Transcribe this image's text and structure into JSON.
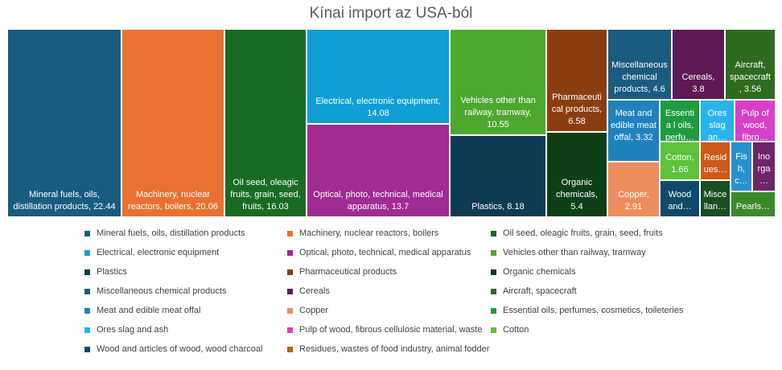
{
  "chart_data": {
    "type": "treemap",
    "title": "Kínai import az USA-ból",
    "items": [
      {
        "label": "Mineral fuels, oils, distillation products",
        "display": "Mineral fuels, oils, distillation products, 22.44",
        "value": 22.44,
        "color": "#185c7f"
      },
      {
        "label": "Machinery, nuclear reactors, boilers",
        "display": "Machinery, nuclear reactors, boilers, 20.06",
        "value": 20.06,
        "color": "#e97132"
      },
      {
        "label": "Oil seed, oleagic fruits, grain, seed, fruits",
        "display": "Oil seed, oleagic fruits, grain, seed, fruits, 16.03",
        "value": 16.03,
        "color": "#196b24"
      },
      {
        "label": "Electrical, electronic equipment",
        "display": "Electrical, electronic equipment, 14.08",
        "value": 14.08,
        "color": "#0f9ed5"
      },
      {
        "label": "Optical, photo, technical, medical apparatus",
        "display": "Optical, photo, technical, medical apparatus, 13.7",
        "value": 13.7,
        "color": "#a02b93"
      },
      {
        "label": "Vehicles other than railway, tramway",
        "display": "Vehicles other than railway, tramway, 10.55",
        "value": 10.55,
        "color": "#4ea72e"
      },
      {
        "label": "Plastics",
        "display": "Plastics, 8.18",
        "value": 8.18,
        "color": "#0e3b52"
      },
      {
        "label": "Pharmaceutical products",
        "display": "Pharmaceuti cal products, 6.58",
        "value": 6.58,
        "color": "#8b3d12"
      },
      {
        "label": "Organic chemicals",
        "display": "Organic chemicals, 5.4",
        "value": 5.4,
        "color": "#0e3f17"
      },
      {
        "label": "Miscellaneous chemical products",
        "display": "Miscellaneous chemical products, 4.6",
        "value": 4.6,
        "color": "#1b5b80"
      },
      {
        "label": "Cereals",
        "display": "Cereals, 3.8",
        "value": 3.8,
        "color": "#5d1a55"
      },
      {
        "label": "Aircraft, spacecraft",
        "display": "Aircraft, spacecraft , 3.56",
        "value": 3.56,
        "color": "#2e6a1f"
      },
      {
        "label": "Meat and edible meat offal",
        "display": "Meat and edible meat offal, 3.32",
        "value": 3.32,
        "color": "#1f82bd"
      },
      {
        "label": "Copper",
        "display": "Copper, 2.91",
        "value": 2.91,
        "color": "#ee8e5d"
      },
      {
        "label": "Essential oils, perfumes, cosmetics, toileteries",
        "display": "Essentia l oils, perfu…",
        "value": null,
        "color": "#1e9b3e"
      },
      {
        "label": "Ores slag and ash",
        "display": "Ores slag an…",
        "value": null,
        "color": "#29b3ea"
      },
      {
        "label": "Pulp of wood, fibrous cellulosic material, waste",
        "display": "Pulp of wood, fibro…",
        "value": null,
        "color": "#d640c8"
      },
      {
        "label": "Cotton",
        "display": "Cotton, 1.66",
        "value": 1.66,
        "color": "#5dc13a"
      },
      {
        "label": "Wood and articles of wood, wood charcoal",
        "display": "Wood and…",
        "value": null,
        "color": "#0f4a6b"
      },
      {
        "label": "Residues, wastes of food industry, animal fodder",
        "display": "Resid ues…",
        "value": null,
        "color": "#cc5a1a"
      },
      {
        "label": "Miscellaneous",
        "display": "Misce llan…",
        "value": null,
        "color": "#194f22"
      },
      {
        "label": "Fish",
        "display": "Fis h, c…",
        "value": null,
        "color": "#2791cf"
      },
      {
        "label": "Inorganic chemicals",
        "display": "Ino rga…",
        "value": null,
        "color": "#6e2468"
      },
      {
        "label": "Pearls",
        "display": "Pearls…",
        "value": null,
        "color": "#3d8a2a"
      }
    ],
    "legend": [
      {
        "label": "Mineral fuels, oils, distillation products",
        "color": "#185c7f"
      },
      {
        "label": "Machinery, nuclear reactors, boilers",
        "color": "#e97132"
      },
      {
        "label": "Oil seed, oleagic fruits, grain, seed, fruits",
        "color": "#196b24"
      },
      {
        "label": "Electrical, electronic equipment",
        "color": "#0f9ed5"
      },
      {
        "label": "Optical, photo, technical, medical apparatus",
        "color": "#a02b93"
      },
      {
        "label": "Vehicles other than railway, tramway",
        "color": "#4ea72e"
      },
      {
        "label": "Plastics",
        "color": "#0e3b52"
      },
      {
        "label": "Pharmaceutical products",
        "color": "#8b3d12"
      },
      {
        "label": "Organic chemicals",
        "color": "#0e3f17"
      },
      {
        "label": "Miscellaneous chemical products",
        "color": "#1b5b80"
      },
      {
        "label": "Cereals",
        "color": "#5d1a55"
      },
      {
        "label": "Aircraft, spacecraft",
        "color": "#2e6a1f"
      },
      {
        "label": "Meat and edible meat offal",
        "color": "#1f82bd"
      },
      {
        "label": "Copper",
        "color": "#ee8e5d"
      },
      {
        "label": "Essential oils, perfumes, cosmetics, toileteries",
        "color": "#1e9b3e"
      },
      {
        "label": "Ores slag and ash",
        "color": "#29b3ea"
      },
      {
        "label": "Pulp of wood, fibrous cellulosic material, waste",
        "color": "#d640c8"
      },
      {
        "label": "Cotton",
        "color": "#5dc13a"
      },
      {
        "label": "Wood and articles of wood, wood charcoal",
        "color": "#0f4a6b"
      },
      {
        "label": "Residues, wastes of food industry, animal fodder",
        "color": "#cc5a1a"
      }
    ]
  }
}
